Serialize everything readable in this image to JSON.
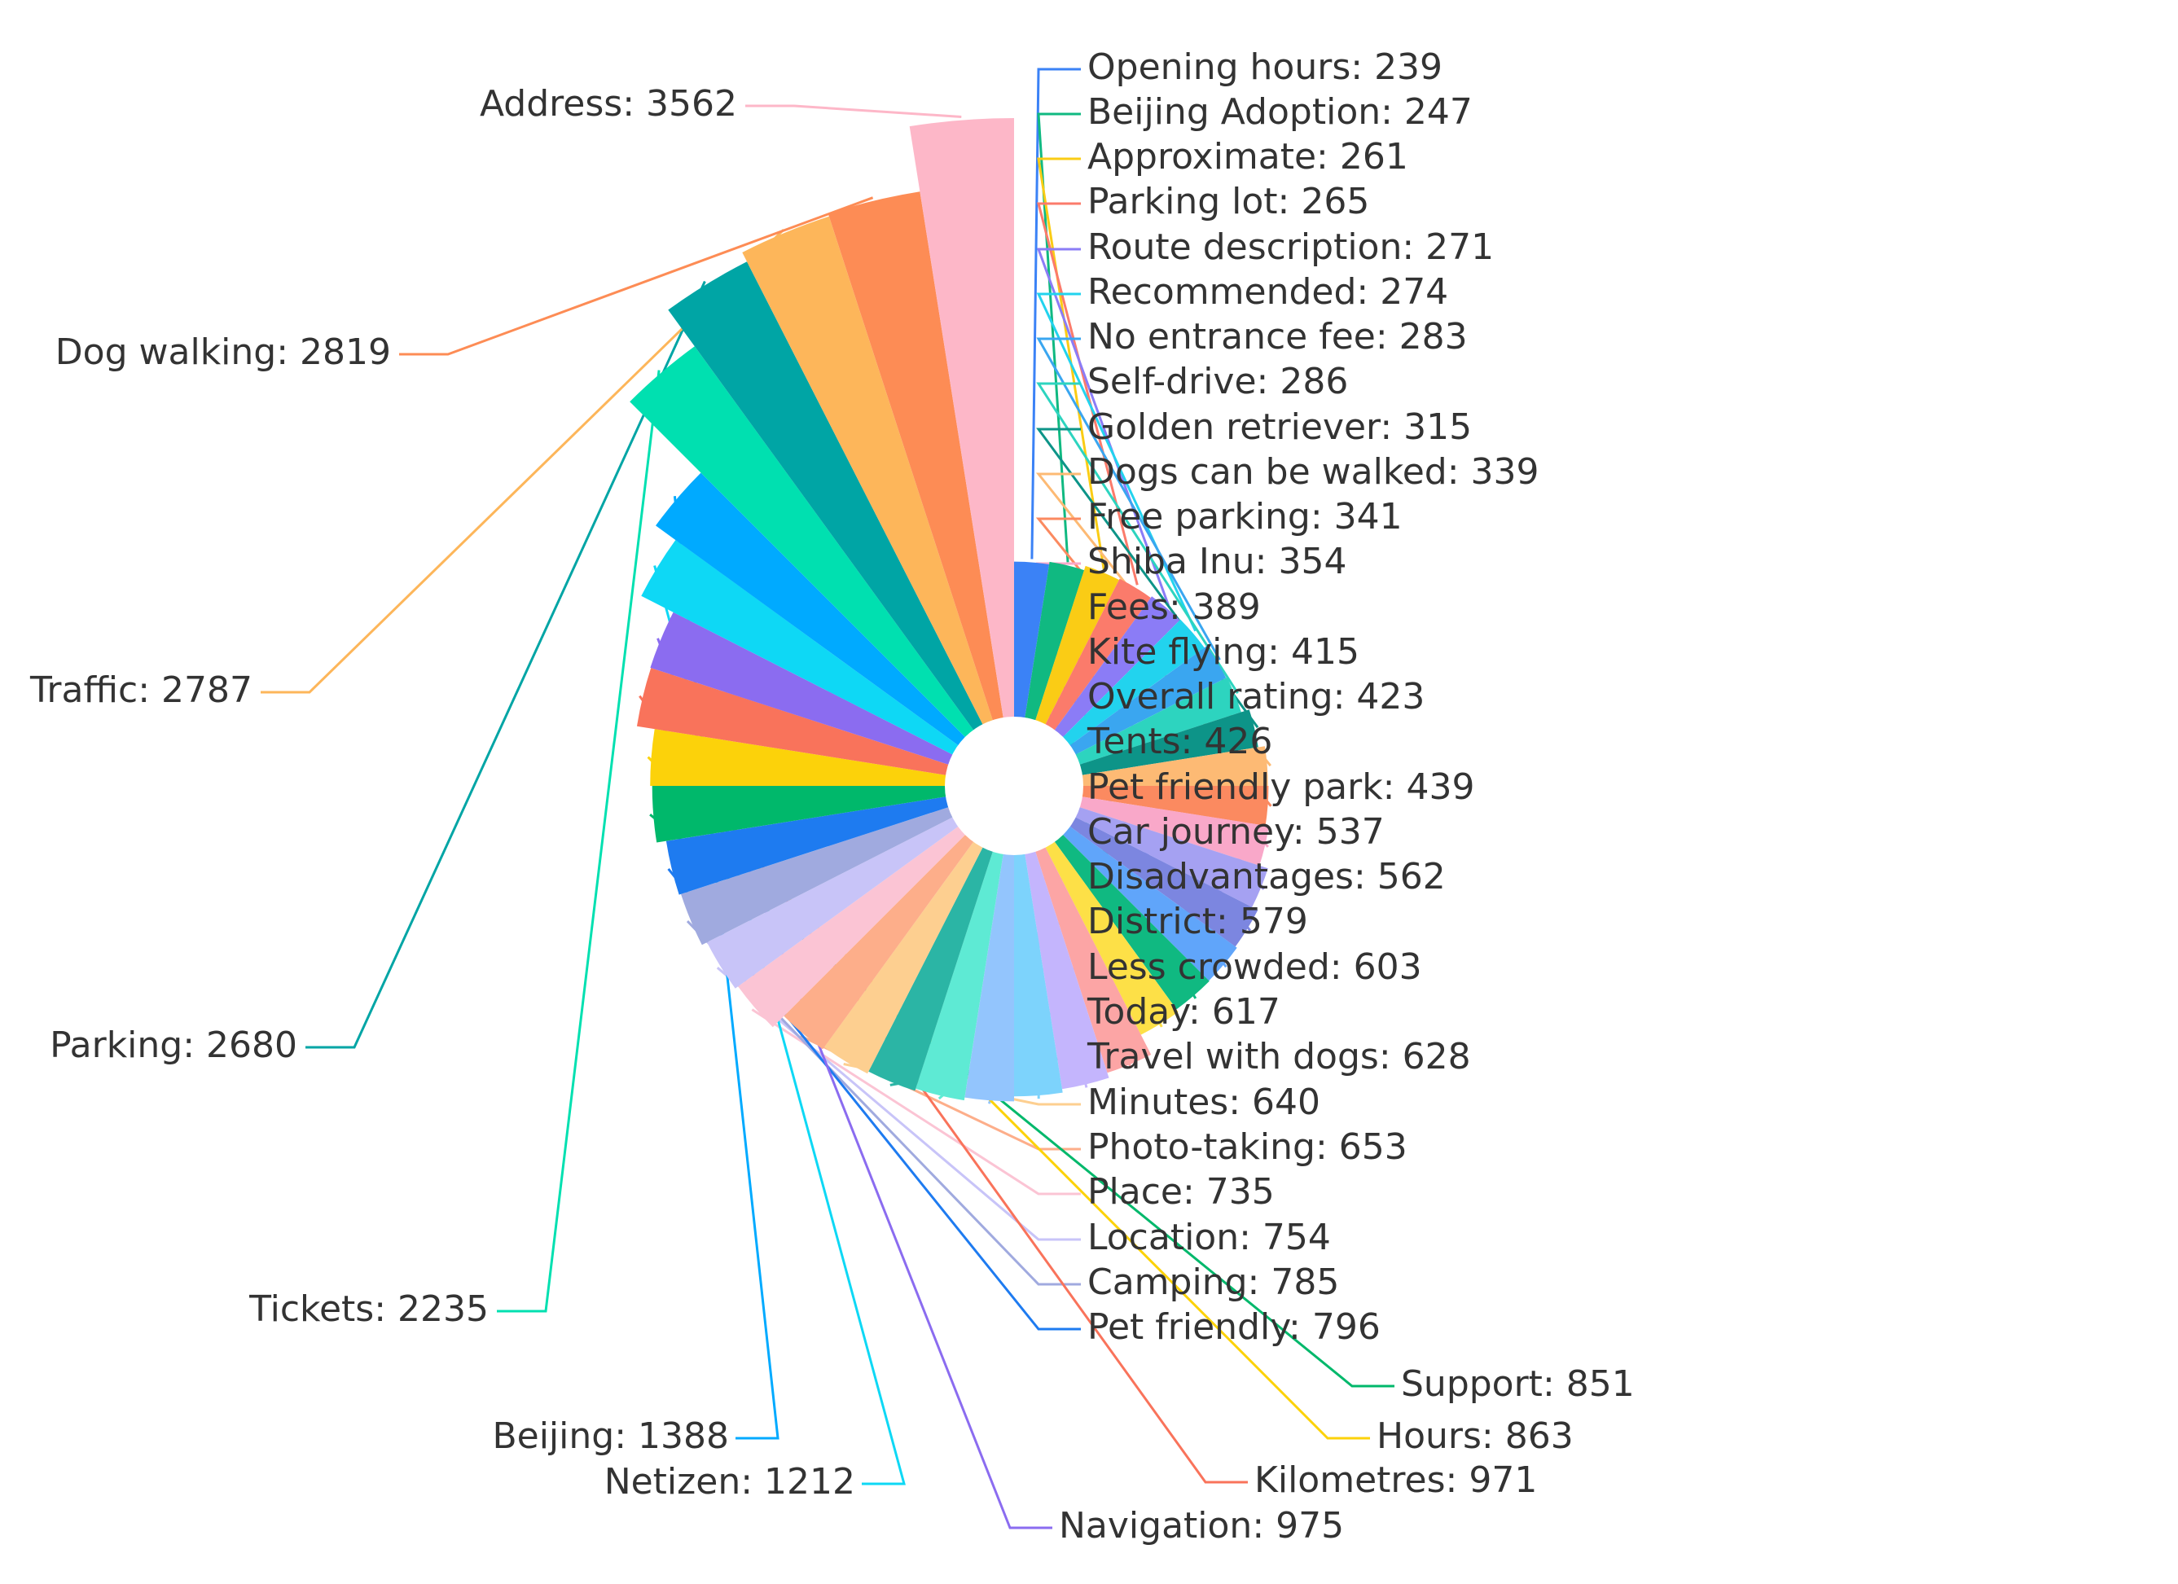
{
  "chart_data": {
    "type": "nightingale-rose",
    "series": [
      {
        "label": "Opening hours",
        "value": 239,
        "color": "#3b82f6"
      },
      {
        "label": "Beijing Adoption",
        "value": 247,
        "color": "#10b981"
      },
      {
        "label": "Approximate",
        "value": 261,
        "color": "#facc15"
      },
      {
        "label": "Parking lot",
        "value": 265,
        "color": "#fb7b6b"
      },
      {
        "label": "Route description",
        "value": 271,
        "color": "#8b7cf6"
      },
      {
        "label": "Recommended",
        "value": 274,
        "color": "#22d3ee"
      },
      {
        "label": "No entrance fee",
        "value": 283,
        "color": "#3aa6f0"
      },
      {
        "label": "Self-drive",
        "value": 286,
        "color": "#2dd4bf"
      },
      {
        "label": "Golden retriever",
        "value": 315,
        "color": "#0d9488"
      },
      {
        "label": "Dogs can be walked",
        "value": 339,
        "color": "#fdba74"
      },
      {
        "label": "Free parking",
        "value": 341,
        "color": "#fb8a60"
      },
      {
        "label": "Shiba Inu",
        "value": 354,
        "color": "#f9a8c9"
      },
      {
        "label": "Fees",
        "value": 389,
        "color": "#a5a1f2"
      },
      {
        "label": "Kite flying",
        "value": 415,
        "color": "#7c86e0"
      },
      {
        "label": "Overall rating",
        "value": 423,
        "color": "#60a5fa"
      },
      {
        "label": "Tents",
        "value": 426,
        "color": "#10b981"
      },
      {
        "label": "Pet friendly park",
        "value": 439,
        "color": "#fde047"
      },
      {
        "label": "Car journey",
        "value": 537,
        "color": "#fca5a5"
      },
      {
        "label": "Disadvantages",
        "value": 562,
        "color": "#c4b5fd"
      },
      {
        "label": "District",
        "value": 579,
        "color": "#7dd3fc"
      },
      {
        "label": "Less crowded",
        "value": 603,
        "color": "#93c5fd"
      },
      {
        "label": "Today",
        "value": 617,
        "color": "#5eead4"
      },
      {
        "label": "Travel with dogs",
        "value": 628,
        "color": "#2bb5a5"
      },
      {
        "label": "Minutes",
        "value": 640,
        "color": "#fdcf90"
      },
      {
        "label": "Photo-taking",
        "value": 653,
        "color": "#fdae8a"
      },
      {
        "label": "Place",
        "value": 735,
        "color": "#fbc4d4"
      },
      {
        "label": "Location",
        "value": 754,
        "color": "#c8c4f8"
      },
      {
        "label": "Camping",
        "value": 785,
        "color": "#a0aadf"
      },
      {
        "label": "Pet friendly",
        "value": 796,
        "color": "#1e7bf0"
      },
      {
        "label": "Support",
        "value": 851,
        "color": "#00b86b"
      },
      {
        "label": "Hours",
        "value": 863,
        "color": "#fcd20a"
      },
      {
        "label": "Kilometres",
        "value": 971,
        "color": "#f9735b"
      },
      {
        "label": "Navigation",
        "value": 975,
        "color": "#8b6cf0"
      },
      {
        "label": "Netizen",
        "value": 1212,
        "color": "#0ed8f5"
      },
      {
        "label": "Beijing",
        "value": 1388,
        "color": "#00aaff"
      },
      {
        "label": "Tickets",
        "value": 2235,
        "color": "#00e0b0"
      },
      {
        "label": "Parking",
        "value": 2680,
        "color": "#00a5a5"
      },
      {
        "label": "Traffic",
        "value": 2787,
        "color": "#fdb65a"
      },
      {
        "label": "Dog walking",
        "value": 2819,
        "color": "#fd8c55"
      },
      {
        "label": "Address",
        "value": 3562,
        "color": "#fdb7c8"
      }
    ]
  }
}
